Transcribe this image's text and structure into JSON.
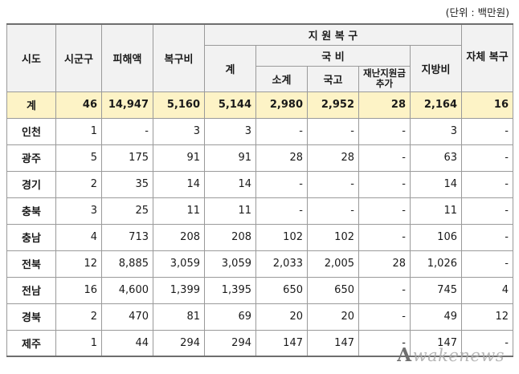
{
  "unit_note": "(단위 : 백만원)",
  "headers": {
    "region": "시도",
    "district": "시군구",
    "damage": "피해액",
    "recovery_cost": "복구비",
    "support": "지 원 복 구",
    "support_total": "계",
    "national": "국 비",
    "subtotal": "소계",
    "treasury": "국고",
    "disaster_fund": "재난지원금 추가",
    "local": "지방비",
    "self_recovery": "자체 복구"
  },
  "total": {
    "region": "계",
    "district": "46",
    "damage": "14,947",
    "recovery": "5,160",
    "support_total": "5,144",
    "subtotal": "2,980",
    "treasury": "2,952",
    "disaster": "28",
    "local": "2,164",
    "self": "16"
  },
  "rows": [
    {
      "region": "인천",
      "district": "1",
      "damage": "-",
      "recovery": "3",
      "support_total": "3",
      "subtotal": "-",
      "treasury": "-",
      "disaster": "-",
      "local": "3",
      "self": "-"
    },
    {
      "region": "광주",
      "district": "5",
      "damage": "175",
      "recovery": "91",
      "support_total": "91",
      "subtotal": "28",
      "treasury": "28",
      "disaster": "-",
      "local": "63",
      "self": "-"
    },
    {
      "region": "경기",
      "district": "2",
      "damage": "35",
      "recovery": "14",
      "support_total": "14",
      "subtotal": "-",
      "treasury": "-",
      "disaster": "-",
      "local": "14",
      "self": "-"
    },
    {
      "region": "충북",
      "district": "3",
      "damage": "25",
      "recovery": "11",
      "support_total": "11",
      "subtotal": "-",
      "treasury": "-",
      "disaster": "-",
      "local": "11",
      "self": "-"
    },
    {
      "region": "충남",
      "district": "4",
      "damage": "713",
      "recovery": "208",
      "support_total": "208",
      "subtotal": "102",
      "treasury": "102",
      "disaster": "-",
      "local": "106",
      "self": "-"
    },
    {
      "region": "전북",
      "district": "12",
      "damage": "8,885",
      "recovery": "3,059",
      "support_total": "3,059",
      "subtotal": "2,033",
      "treasury": "2,005",
      "disaster": "28",
      "local": "1,026",
      "self": "-"
    },
    {
      "region": "전남",
      "district": "16",
      "damage": "4,600",
      "recovery": "1,399",
      "support_total": "1,395",
      "subtotal": "650",
      "treasury": "650",
      "disaster": "-",
      "local": "745",
      "self": "4"
    },
    {
      "region": "경북",
      "district": "2",
      "damage": "470",
      "recovery": "81",
      "support_total": "69",
      "subtotal": "20",
      "treasury": "20",
      "disaster": "-",
      "local": "49",
      "self": "12"
    },
    {
      "region": "제주",
      "district": "1",
      "damage": "44",
      "recovery": "294",
      "support_total": "294",
      "subtotal": "147",
      "treasury": "147",
      "disaster": "-",
      "local": "147",
      "self": "-"
    }
  ],
  "watermark": {
    "mark": "A",
    "text": "wakenews"
  }
}
